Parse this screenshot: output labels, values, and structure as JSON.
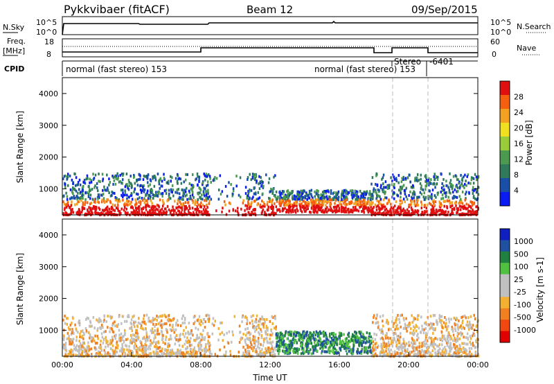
{
  "header": {
    "station": "Pykkvibaer (fitACF)",
    "beam": "Beam 12",
    "date": "09/Sep/2015"
  },
  "top_panels": {
    "nsky_label": "N.Sky",
    "nsky_ticks": [
      "10^5",
      "10^0"
    ],
    "nsearch_label": "N.Search",
    "nsearch_ticks": [
      "10^5",
      "10^0"
    ],
    "freq_label_1": "Freq.",
    "freq_label_2": "[MHz]",
    "freq_ticks": [
      "18",
      "8"
    ],
    "nave_label": "Nave",
    "nave_ticks": [
      "60",
      "0"
    ],
    "cpid_label": "CPID",
    "cpid_segments": [
      {
        "label": "normal (fast stereo) 153",
        "t_start": 0,
        "t_end": 11.5
      },
      {
        "label": "normal (fast stereo) 153",
        "t_start": 12.0,
        "t_end": 19.0
      },
      {
        "label": "Stereo",
        "t_start": 19.0,
        "t_end": 21.0
      },
      {
        "label": "-6401",
        "t_start": 21.0,
        "t_end": 24.0
      }
    ]
  },
  "colors": {
    "power_scale": [
      "#0a1cf0",
      "#1a4fa8",
      "#2f7a5a",
      "#4c9a50",
      "#9acc3a",
      "#f0e020",
      "#f4a020",
      "#f46010",
      "#e01010"
    ],
    "velocity_scale": [
      "#e00000",
      "#f04810",
      "#f08020",
      "#f4b030",
      "#c0c0c0",
      "#c0c0c0",
      "#50c040",
      "#208040",
      "#2050a0",
      "#1020c0"
    ]
  },
  "chart_data": [
    {
      "type": "heatmap",
      "title": "",
      "quantity": "Power",
      "ylabel": "Slant Range [km]",
      "ylim": [
        180,
        4500
      ],
      "y_ticks": [
        1000,
        2000,
        3000,
        4000
      ],
      "xlabel": "",
      "xlim": [
        0,
        24
      ],
      "colorbar_label": "Power [dB]",
      "colorbar_ticks": [
        4,
        8,
        12,
        16,
        20,
        24,
        28
      ],
      "colorbar_range": [
        0,
        32
      ],
      "grid": false
    },
    {
      "type": "heatmap",
      "title": "",
      "quantity": "Velocity",
      "ylabel": "Slant Range [km]",
      "ylim": [
        180,
        4500
      ],
      "y_ticks": [
        1000,
        2000,
        3000,
        4000
      ],
      "xlabel": "Time UT",
      "xlim": [
        0,
        24
      ],
      "x_ticks": [
        "00:00",
        "04:00",
        "08:00",
        "12:00",
        "16:00",
        "20:00",
        "00:00"
      ],
      "colorbar_label": "Velocity [m s-1]",
      "colorbar_ticks": [
        "1000",
        "500",
        "100",
        "25",
        "-25",
        "-100",
        "-500",
        "-1000"
      ],
      "grid": false
    }
  ]
}
